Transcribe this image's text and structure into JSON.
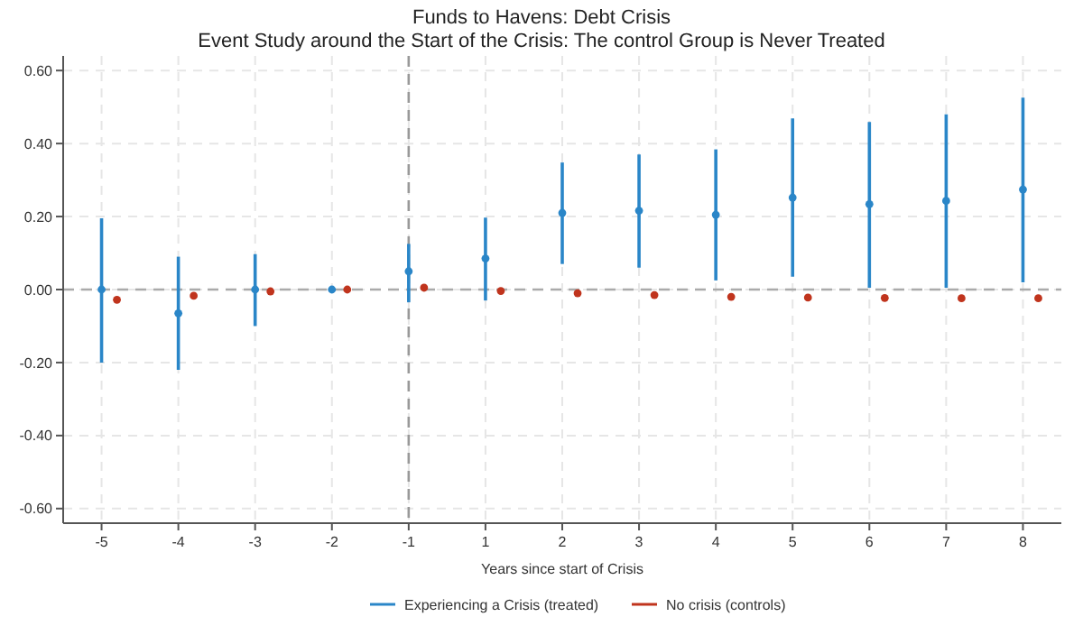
{
  "chart_data": {
    "type": "scatter",
    "title": "Funds to Havens: Debt Crisis",
    "subtitle": "Event Study around the Start of the Crisis: The control Group is Never Treated",
    "xlabel": "Years since start of Crisis",
    "categories": [
      "-5",
      "-4",
      "-3",
      "-2",
      "-1",
      "1",
      "2",
      "3",
      "4",
      "5",
      "6",
      "7",
      "8"
    ],
    "series": [
      {
        "name": "Experiencing a Crisis (treated)",
        "color": "#2a86c8",
        "values": [
          0.0,
          -0.065,
          0.0,
          0.0,
          0.05,
          0.085,
          0.21,
          0.216,
          0.205,
          0.252,
          0.234,
          0.243,
          0.274
        ],
        "errors": [
          [
            -0.2,
            0.195
          ],
          [
            -0.22,
            0.09
          ],
          [
            -0.1,
            0.097
          ],
          null,
          [
            -0.035,
            0.125
          ],
          [
            -0.03,
            0.197
          ],
          [
            0.07,
            0.348
          ],
          [
            0.06,
            0.37
          ],
          [
            0.025,
            0.384
          ],
          [
            0.035,
            0.469
          ],
          [
            0.005,
            0.459
          ],
          [
            0.005,
            0.48
          ],
          [
            0.02,
            0.526
          ]
        ]
      },
      {
        "name": "No crisis (controls)",
        "color": "#c0341d",
        "values": [
          -0.028,
          -0.017,
          -0.005,
          0.0,
          0.005,
          -0.004,
          -0.01,
          -0.015,
          -0.02,
          -0.022,
          -0.023,
          -0.024,
          -0.024
        ]
      }
    ],
    "ylim": [
      -0.64,
      0.64
    ],
    "yticks": [
      {
        "value": -0.6,
        "label": "-0.60"
      },
      {
        "value": -0.4,
        "label": "-0.40"
      },
      {
        "value": -0.2,
        "label": "-0.20"
      },
      {
        "value": 0,
        "label": "0.00"
      },
      {
        "value": 0.2,
        "label": "0.20"
      },
      {
        "value": 0.4,
        "label": "0.40"
      },
      {
        "value": 0.6,
        "label": "0.60"
      }
    ],
    "ref_lines": [
      {
        "axis": "y",
        "value": 0,
        "color": "#aaaaaa",
        "line_style": "dashed"
      },
      {
        "axis": "x",
        "value": "-1",
        "color": "#999999",
        "line_style": "dashed"
      }
    ],
    "grid": true,
    "legend": "bottom",
    "marker": "circle"
  }
}
